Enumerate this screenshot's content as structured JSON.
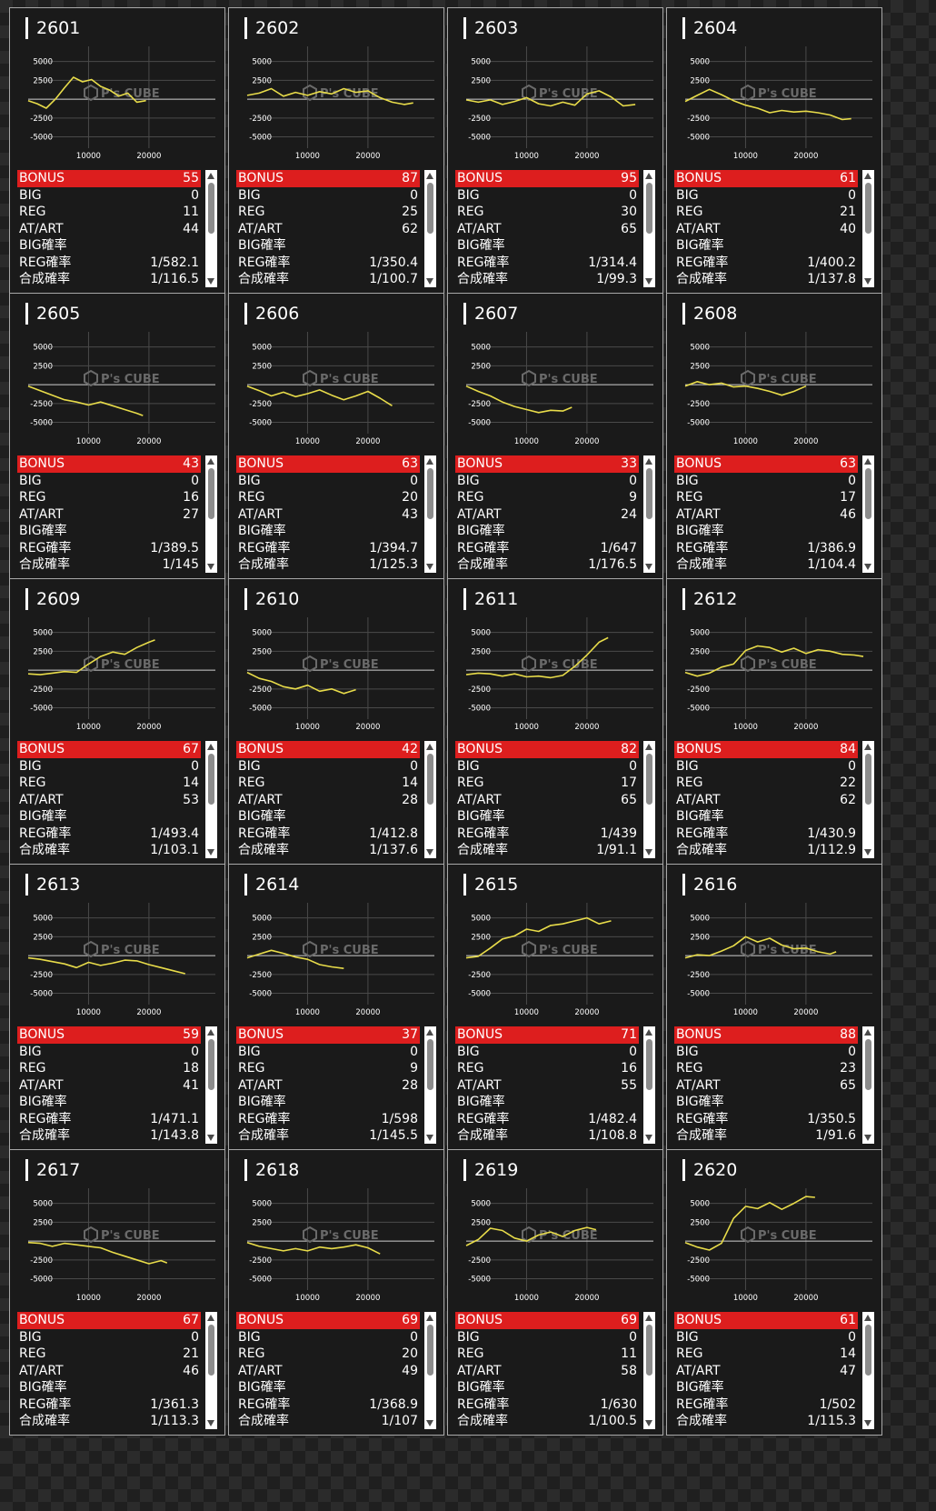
{
  "labels": {
    "bonus": "BONUS",
    "big": "BIG",
    "reg": "REG",
    "atart": "AT/ART",
    "big_rate": "BIG確率",
    "reg_rate": "REG確率",
    "total_rate": "合成確率"
  },
  "chart_axes": {
    "y_ticks": [
      "5000",
      "2500",
      "-2500",
      "-5000"
    ],
    "x_ticks": [
      "10000",
      "20000"
    ],
    "ylim": [
      -6500,
      7000
    ],
    "xlim": [
      0,
      31000
    ]
  },
  "watermark": {
    "text": "P's CUBE"
  },
  "colors": {
    "line": "#e8dc4a",
    "bonus_bg": "#dd1e1e",
    "card_bg": "#1a1a1a"
  },
  "machines": [
    {
      "id": "2601",
      "bonus": "55",
      "big": "0",
      "reg": "11",
      "atart": "44",
      "big_rate": "",
      "reg_rate": "1/582.1",
      "total_rate": "1/116.5",
      "chart_data": {
        "type": "line",
        "x": [
          0,
          1500,
          3000,
          4500,
          6000,
          7500,
          9000,
          10500,
          12000,
          13500,
          15000,
          16500,
          18000,
          19500
        ],
        "y": [
          -200,
          -600,
          -1200,
          0,
          1500,
          2900,
          2300,
          2600,
          1700,
          1200,
          400,
          800,
          -400,
          -200
        ]
      }
    },
    {
      "id": "2602",
      "bonus": "87",
      "big": "0",
      "reg": "25",
      "atart": "62",
      "big_rate": "",
      "reg_rate": "1/350.4",
      "total_rate": "1/100.7",
      "chart_data": {
        "type": "line",
        "x": [
          0,
          2000,
          4000,
          6000,
          8000,
          10000,
          12000,
          14000,
          16000,
          18000,
          20000,
          22000,
          24000,
          26000,
          27500
        ],
        "y": [
          500,
          800,
          1400,
          400,
          900,
          500,
          1000,
          700,
          1400,
          900,
          1100,
          200,
          -400,
          -700,
          -500
        ]
      }
    },
    {
      "id": "2603",
      "bonus": "95",
      "big": "0",
      "reg": "30",
      "atart": "65",
      "big_rate": "",
      "reg_rate": "1/314.4",
      "total_rate": "1/99.3",
      "chart_data": {
        "type": "line",
        "x": [
          0,
          2000,
          4000,
          6000,
          8000,
          10000,
          12000,
          14000,
          16000,
          18000,
          20000,
          22000,
          24000,
          26000,
          28000
        ],
        "y": [
          -100,
          -400,
          -100,
          -700,
          -300,
          200,
          -600,
          -900,
          -400,
          -800,
          700,
          1100,
          300,
          -900,
          -700
        ]
      }
    },
    {
      "id": "2604",
      "bonus": "61",
      "big": "0",
      "reg": "21",
      "atart": "40",
      "big_rate": "",
      "reg_rate": "1/400.2",
      "total_rate": "1/137.8",
      "chart_data": {
        "type": "line",
        "x": [
          0,
          2000,
          4000,
          6000,
          8000,
          10000,
          12000,
          14000,
          16000,
          18000,
          20000,
          22000,
          24000,
          26000,
          27500
        ],
        "y": [
          -300,
          500,
          1300,
          600,
          -200,
          -800,
          -1200,
          -1800,
          -1500,
          -1700,
          -1600,
          -1800,
          -2100,
          -2700,
          -2600
        ]
      }
    },
    {
      "id": "2605",
      "bonus": "43",
      "big": "0",
      "reg": "16",
      "atart": "27",
      "big_rate": "",
      "reg_rate": "1/389.5",
      "total_rate": "1/145",
      "chart_data": {
        "type": "line",
        "x": [
          0,
          2000,
          4000,
          6000,
          8000,
          10000,
          12000,
          14000,
          16000,
          18000,
          19000
        ],
        "y": [
          -200,
          -800,
          -1400,
          -2000,
          -2300,
          -2700,
          -2300,
          -2800,
          -3300,
          -3800,
          -4100
        ]
      }
    },
    {
      "id": "2606",
      "bonus": "63",
      "big": "0",
      "reg": "20",
      "atart": "43",
      "big_rate": "",
      "reg_rate": "1/394.7",
      "total_rate": "1/125.3",
      "chart_data": {
        "type": "line",
        "x": [
          0,
          2000,
          4000,
          6000,
          8000,
          10000,
          12000,
          14000,
          16000,
          18000,
          20000,
          22000,
          24000
        ],
        "y": [
          -200,
          -800,
          -1500,
          -1000,
          -1600,
          -1200,
          -700,
          -1400,
          -2000,
          -1500,
          -900,
          -1800,
          -2800
        ]
      }
    },
    {
      "id": "2607",
      "bonus": "33",
      "big": "0",
      "reg": "9",
      "atart": "24",
      "big_rate": "",
      "reg_rate": "1/647",
      "total_rate": "1/176.5",
      "chart_data": {
        "type": "line",
        "x": [
          0,
          2000,
          4000,
          6000,
          8000,
          10000,
          12000,
          14000,
          16000,
          17500
        ],
        "y": [
          -200,
          -900,
          -1500,
          -2300,
          -2900,
          -3300,
          -3700,
          -3400,
          -3500,
          -3000
        ]
      }
    },
    {
      "id": "2608",
      "bonus": "63",
      "big": "0",
      "reg": "17",
      "atart": "46",
      "big_rate": "",
      "reg_rate": "1/386.9",
      "total_rate": "1/104.4",
      "chart_data": {
        "type": "line",
        "x": [
          0,
          2000,
          4000,
          6000,
          8000,
          10000,
          12000,
          14000,
          16000,
          18000,
          20000
        ],
        "y": [
          -200,
          400,
          0,
          200,
          -300,
          -200,
          -500,
          -900,
          -1400,
          -900,
          -200
        ]
      }
    },
    {
      "id": "2609",
      "bonus": "67",
      "big": "0",
      "reg": "14",
      "atart": "53",
      "big_rate": "",
      "reg_rate": "1/493.4",
      "total_rate": "1/103.1",
      "chart_data": {
        "type": "line",
        "x": [
          0,
          2000,
          4000,
          6000,
          8000,
          10000,
          12000,
          14000,
          16000,
          18000,
          20000,
          21000
        ],
        "y": [
          -500,
          -600,
          -400,
          -200,
          -300,
          800,
          1800,
          2400,
          2100,
          3000,
          3700,
          4000
        ]
      }
    },
    {
      "id": "2610",
      "bonus": "42",
      "big": "0",
      "reg": "14",
      "atart": "28",
      "big_rate": "",
      "reg_rate": "1/412.8",
      "total_rate": "1/137.6",
      "chart_data": {
        "type": "line",
        "x": [
          0,
          2000,
          4000,
          6000,
          8000,
          10000,
          12000,
          14000,
          16000,
          18000
        ],
        "y": [
          -300,
          -1100,
          -1500,
          -2200,
          -2500,
          -2000,
          -2800,
          -2500,
          -3100,
          -2600
        ]
      }
    },
    {
      "id": "2611",
      "bonus": "82",
      "big": "0",
      "reg": "17",
      "atart": "65",
      "big_rate": "",
      "reg_rate": "1/439",
      "total_rate": "1/91.1",
      "chart_data": {
        "type": "line",
        "x": [
          0,
          2000,
          4000,
          6000,
          8000,
          10000,
          12000,
          14000,
          16000,
          18000,
          20000,
          22000,
          23500
        ],
        "y": [
          -600,
          -400,
          -500,
          -800,
          -500,
          -900,
          -800,
          -1000,
          -700,
          500,
          2000,
          3700,
          4300
        ]
      }
    },
    {
      "id": "2612",
      "bonus": "84",
      "big": "0",
      "reg": "22",
      "atart": "62",
      "big_rate": "",
      "reg_rate": "1/430.9",
      "total_rate": "1/112.9",
      "chart_data": {
        "type": "line",
        "x": [
          0,
          2000,
          4000,
          6000,
          8000,
          10000,
          12000,
          14000,
          16000,
          18000,
          20000,
          22000,
          24000,
          26000,
          28000,
          29500
        ],
        "y": [
          -300,
          -800,
          -400,
          400,
          800,
          2600,
          3200,
          3000,
          2400,
          2900,
          2200,
          2700,
          2500,
          2100,
          2000,
          1800
        ]
      }
    },
    {
      "id": "2613",
      "bonus": "59",
      "big": "0",
      "reg": "18",
      "atart": "41",
      "big_rate": "",
      "reg_rate": "1/471.1",
      "total_rate": "1/143.8",
      "chart_data": {
        "type": "line",
        "x": [
          0,
          2000,
          4000,
          6000,
          8000,
          10000,
          12000,
          14000,
          16000,
          18000,
          20000,
          22000,
          24000,
          26000
        ],
        "y": [
          -300,
          -500,
          -800,
          -1100,
          -1600,
          -900,
          -1300,
          -1000,
          -600,
          -700,
          -1200,
          -1600,
          -2000,
          -2400
        ]
      }
    },
    {
      "id": "2614",
      "bonus": "37",
      "big": "0",
      "reg": "9",
      "atart": "28",
      "big_rate": "",
      "reg_rate": "1/598",
      "total_rate": "1/145.5",
      "chart_data": {
        "type": "line",
        "x": [
          0,
          2000,
          4000,
          6000,
          8000,
          10000,
          12000,
          14000,
          16000
        ],
        "y": [
          -300,
          200,
          700,
          300,
          -200,
          -500,
          -1200,
          -1500,
          -1700
        ]
      }
    },
    {
      "id": "2615",
      "bonus": "71",
      "big": "0",
      "reg": "16",
      "atart": "55",
      "big_rate": "",
      "reg_rate": "1/482.4",
      "total_rate": "1/108.8",
      "chart_data": {
        "type": "line",
        "x": [
          0,
          2000,
          4000,
          6000,
          8000,
          10000,
          12000,
          14000,
          16000,
          18000,
          20000,
          22000,
          24000
        ],
        "y": [
          -300,
          -100,
          1000,
          2200,
          2600,
          3500,
          3200,
          4000,
          4200,
          4600,
          5000,
          4200,
          4600
        ]
      }
    },
    {
      "id": "2616",
      "bonus": "88",
      "big": "0",
      "reg": "23",
      "atart": "65",
      "big_rate": "",
      "reg_rate": "1/350.5",
      "total_rate": "1/91.6",
      "chart_data": {
        "type": "line",
        "x": [
          0,
          2000,
          4000,
          6000,
          8000,
          10000,
          12000,
          14000,
          16000,
          18000,
          20000,
          22000,
          24000,
          25000
        ],
        "y": [
          -300,
          100,
          0,
          600,
          1300,
          2500,
          1800,
          2300,
          1400,
          900,
          1000,
          500,
          200,
          500
        ]
      }
    },
    {
      "id": "2617",
      "bonus": "67",
      "big": "0",
      "reg": "21",
      "atart": "46",
      "big_rate": "",
      "reg_rate": "1/361.3",
      "total_rate": "1/113.3",
      "chart_data": {
        "type": "line",
        "x": [
          0,
          2000,
          4000,
          6000,
          8000,
          10000,
          12000,
          14000,
          16000,
          18000,
          20000,
          22000,
          23000
        ],
        "y": [
          -200,
          -300,
          -700,
          -300,
          -500,
          -700,
          -900,
          -1500,
          -2000,
          -2500,
          -3000,
          -2600,
          -2900
        ]
      }
    },
    {
      "id": "2618",
      "bonus": "69",
      "big": "0",
      "reg": "20",
      "atart": "49",
      "big_rate": "",
      "reg_rate": "1/368.9",
      "total_rate": "1/107",
      "chart_data": {
        "type": "line",
        "x": [
          0,
          2000,
          4000,
          6000,
          8000,
          10000,
          12000,
          14000,
          16000,
          18000,
          20000,
          22000
        ],
        "y": [
          -200,
          -700,
          -1000,
          -1300,
          -1000,
          -1300,
          -800,
          -1000,
          -800,
          -500,
          -900,
          -1700
        ]
      }
    },
    {
      "id": "2619",
      "bonus": "69",
      "big": "0",
      "reg": "11",
      "atart": "58",
      "big_rate": "",
      "reg_rate": "1/630",
      "total_rate": "1/100.5",
      "chart_data": {
        "type": "line",
        "x": [
          0,
          2000,
          4000,
          6000,
          8000,
          10000,
          12000,
          14000,
          16000,
          18000,
          20000,
          21500
        ],
        "y": [
          -600,
          200,
          1700,
          1400,
          400,
          0,
          800,
          1200,
          600,
          1400,
          1800,
          1500
        ]
      }
    },
    {
      "id": "2620",
      "bonus": "61",
      "big": "0",
      "reg": "14",
      "atart": "47",
      "big_rate": "",
      "reg_rate": "1/502",
      "total_rate": "1/115.3",
      "chart_data": {
        "type": "line",
        "x": [
          0,
          2000,
          4000,
          6000,
          8000,
          10000,
          12000,
          14000,
          16000,
          18000,
          20000,
          21500
        ],
        "y": [
          -200,
          -800,
          -1200,
          -300,
          3000,
          4600,
          4300,
          5100,
          4200,
          5000,
          5900,
          5800
        ]
      }
    }
  ]
}
